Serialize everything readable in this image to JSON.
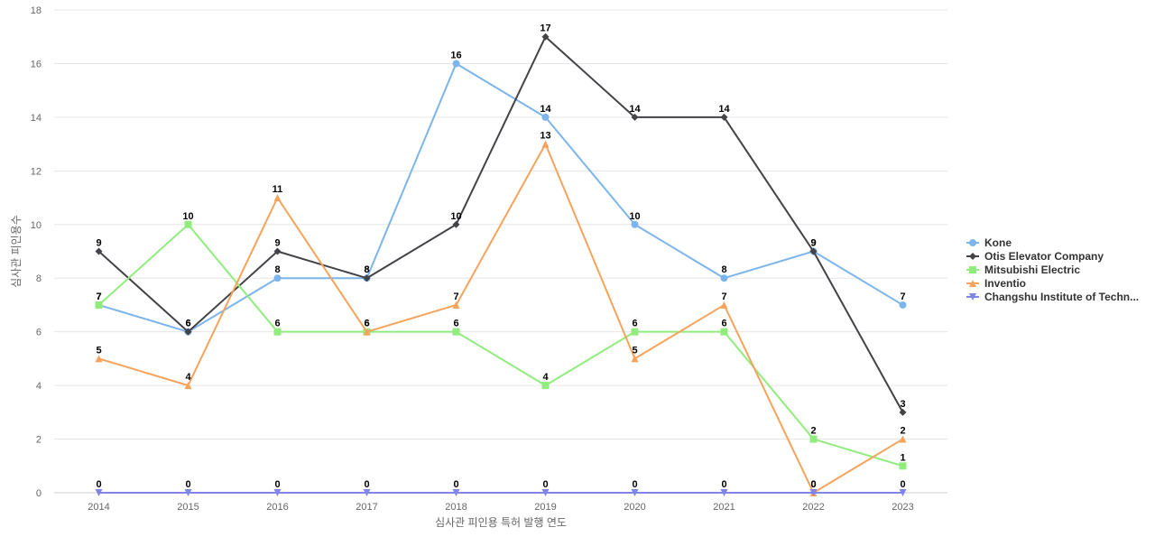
{
  "chart_data": {
    "type": "line",
    "title": "",
    "xlabel": "심사관 피인용 특허 발행 연도",
    "ylabel": "심사관 피인용수",
    "categories": [
      "2014",
      "2015",
      "2016",
      "2017",
      "2018",
      "2019",
      "2020",
      "2021",
      "2022",
      "2023"
    ],
    "ylim": [
      0,
      18
    ],
    "yticks": [
      0,
      2,
      4,
      6,
      8,
      10,
      12,
      14,
      16,
      18
    ],
    "grid": true,
    "legend_position": "right",
    "series": [
      {
        "name": "Kone",
        "color": "#7cb5ec",
        "marker": "circle",
        "values": [
          7,
          6,
          8,
          8,
          16,
          14,
          10,
          8,
          9,
          7
        ]
      },
      {
        "name": "Otis Elevator Company",
        "color": "#434348",
        "marker": "diamond",
        "values": [
          9,
          6,
          9,
          8,
          10,
          17,
          14,
          14,
          9,
          3
        ]
      },
      {
        "name": "Mitsubishi Electric",
        "color": "#90ed7d",
        "marker": "square",
        "values": [
          7,
          10,
          6,
          6,
          6,
          4,
          6,
          6,
          2,
          1
        ]
      },
      {
        "name": "Inventio",
        "color": "#f7a35c",
        "marker": "triangle",
        "values": [
          5,
          4,
          11,
          6,
          7,
          13,
          5,
          7,
          0,
          2
        ]
      },
      {
        "name": "Changshu Institute of Techn...",
        "color": "#8085e9",
        "marker": "triangle-down",
        "values": [
          0,
          0,
          0,
          0,
          0,
          0,
          0,
          0,
          0,
          0
        ]
      }
    ]
  }
}
